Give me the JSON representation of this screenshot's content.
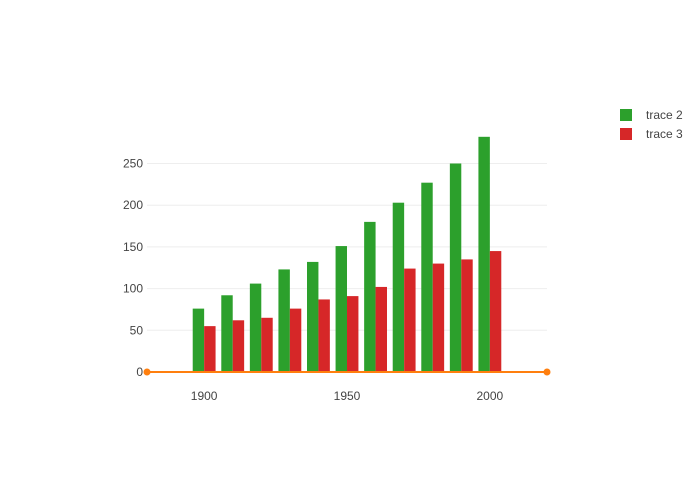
{
  "chart_data": {
    "type": "bar",
    "title": "",
    "xlabel": "",
    "ylabel": "",
    "xlim": [
      1880,
      2020
    ],
    "ylim": [
      0,
      290
    ],
    "x_ticks": [
      "1900",
      "1950",
      "2000"
    ],
    "y_ticks": [
      "0",
      "50",
      "100",
      "150",
      "200",
      "250"
    ],
    "grid": true,
    "legend": {
      "position": "top-right"
    },
    "categories": [
      1900,
      1910,
      1920,
      1930,
      1940,
      1950,
      1960,
      1970,
      1980,
      1990,
      2000
    ],
    "series": [
      {
        "name": "trace 2",
        "color": "#2ca02c",
        "values": [
          76,
          92,
          106,
          123,
          132,
          151,
          180,
          203,
          227,
          250,
          282
        ]
      },
      {
        "name": "trace 3",
        "color": "#d62728",
        "values": [
          55,
          62,
          65,
          76,
          87,
          91,
          102,
          124,
          130,
          135,
          145
        ]
      }
    ],
    "line": {
      "color": "#ff7f0e",
      "x": [
        1880,
        2020
      ],
      "y": [
        0,
        0
      ]
    }
  }
}
